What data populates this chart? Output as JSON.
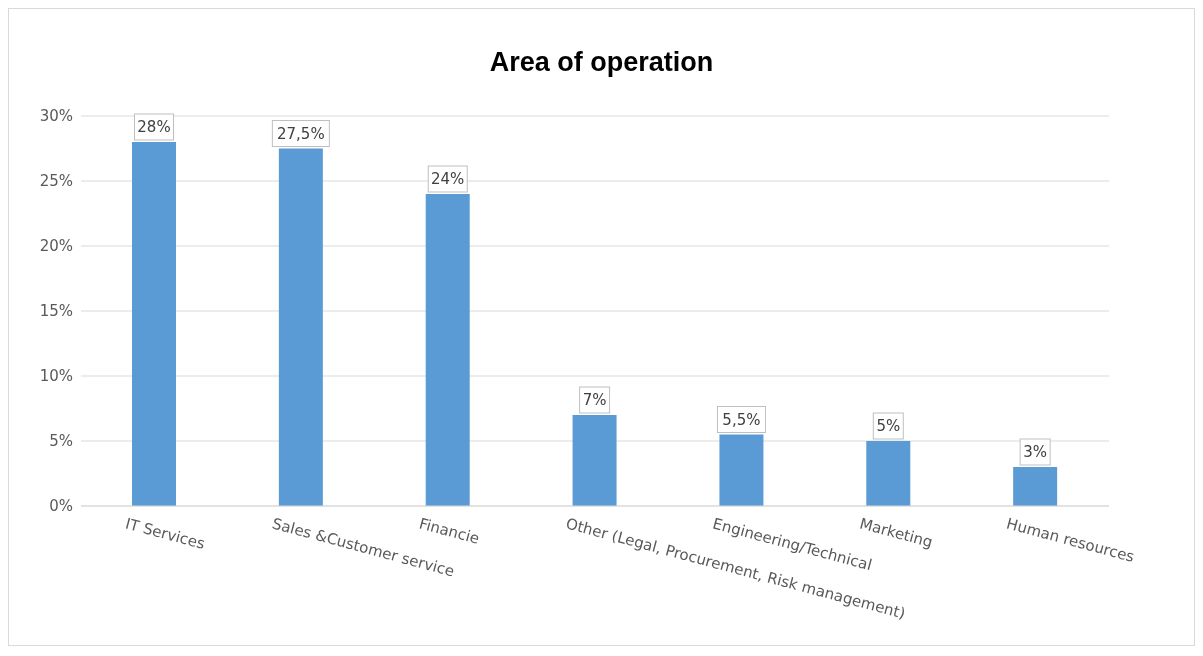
{
  "chart_data": {
    "type": "bar",
    "title": "Area of operation",
    "categories": [
      "IT Services",
      "Sales &Customer service",
      "Financie",
      "Other (Legal, Procurement, Risk management)",
      "Engineering/Technical",
      "Marketing",
      "Human resources"
    ],
    "values": [
      28,
      27.5,
      24,
      7,
      5.5,
      5,
      3
    ],
    "value_labels": [
      "28%",
      "27,5%",
      "24%",
      "7%",
      "5,5%",
      "5%",
      "3%"
    ],
    "color": "#5b9bd5",
    "ylim": [
      0,
      30
    ],
    "yticks": [
      {
        "value": 0,
        "label": "0%"
      },
      {
        "value": 5,
        "label": "5%"
      },
      {
        "value": 10,
        "label": "10%"
      },
      {
        "value": 15,
        "label": "15%"
      },
      {
        "value": 20,
        "label": "20%"
      },
      {
        "value": 25,
        "label": "25%"
      },
      {
        "value": 30,
        "label": "30%"
      }
    ],
    "grid": "y",
    "legend": false
  }
}
